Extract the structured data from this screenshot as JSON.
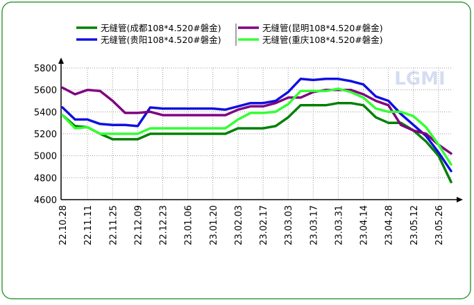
{
  "chart_data": {
    "type": "line",
    "watermark": "LGMI",
    "categories": [
      "22.10.28",
      null,
      "22.11.11",
      null,
      "22.11.25",
      null,
      "22.12.09",
      null,
      "22.12.23",
      null,
      "23.01.06",
      null,
      "23.01.20",
      null,
      "23.02.03",
      null,
      "23.02.17",
      null,
      "23.03.03",
      null,
      "23.03.17",
      null,
      "23.03.31",
      null,
      "23.04.14",
      null,
      "23.04.28",
      null,
      "23.05.12",
      null,
      "23.05.26",
      null
    ],
    "series": [
      {
        "name": "无缝管(成都108*4.520#磐金)",
        "color": "#008000",
        "values": [
          5370,
          5270,
          5260,
          5200,
          5150,
          5150,
          5150,
          5200,
          5200,
          5200,
          5200,
          5200,
          5200,
          5200,
          5250,
          5250,
          5250,
          5270,
          5350,
          5460,
          5460,
          5460,
          5480,
          5480,
          5460,
          5350,
          5300,
          5300,
          5230,
          5130,
          5000,
          4760
        ]
      },
      {
        "name": "无缝管(贵阳108*4.520#磐金)",
        "color": "#1010e0",
        "values": [
          5440,
          5330,
          5330,
          5290,
          5280,
          5280,
          5270,
          5440,
          5430,
          5430,
          5430,
          5430,
          5430,
          5420,
          5450,
          5480,
          5480,
          5500,
          5580,
          5700,
          5690,
          5700,
          5700,
          5680,
          5650,
          5540,
          5500,
          5380,
          5280,
          5180,
          5030,
          4860
        ]
      },
      {
        "name": "无缝管(昆明108*4.520#磐金)",
        "color": "#800080",
        "values": [
          5620,
          5560,
          5600,
          5590,
          5500,
          5390,
          5390,
          5400,
          5370,
          5370,
          5370,
          5370,
          5370,
          5370,
          5420,
          5450,
          5450,
          5480,
          5530,
          5530,
          5580,
          5600,
          5600,
          5600,
          5560,
          5500,
          5460,
          5280,
          5230,
          5200,
          5100,
          5020
        ]
      },
      {
        "name": "无缝管(重庆108*4.520#磐金)",
        "color": "#33ff33",
        "values": [
          5370,
          5250,
          5260,
          5200,
          5200,
          5200,
          5200,
          5250,
          5250,
          5250,
          5250,
          5250,
          5250,
          5250,
          5330,
          5390,
          5390,
          5400,
          5470,
          5590,
          5590,
          5590,
          5610,
          5580,
          5530,
          5430,
          5400,
          5400,
          5360,
          5260,
          5100,
          4920
        ]
      }
    ],
    "ylim": [
      4600,
      5800
    ],
    "yticks": [
      4600,
      4800,
      5000,
      5200,
      5400,
      5600,
      5800
    ],
    "grid": true
  }
}
